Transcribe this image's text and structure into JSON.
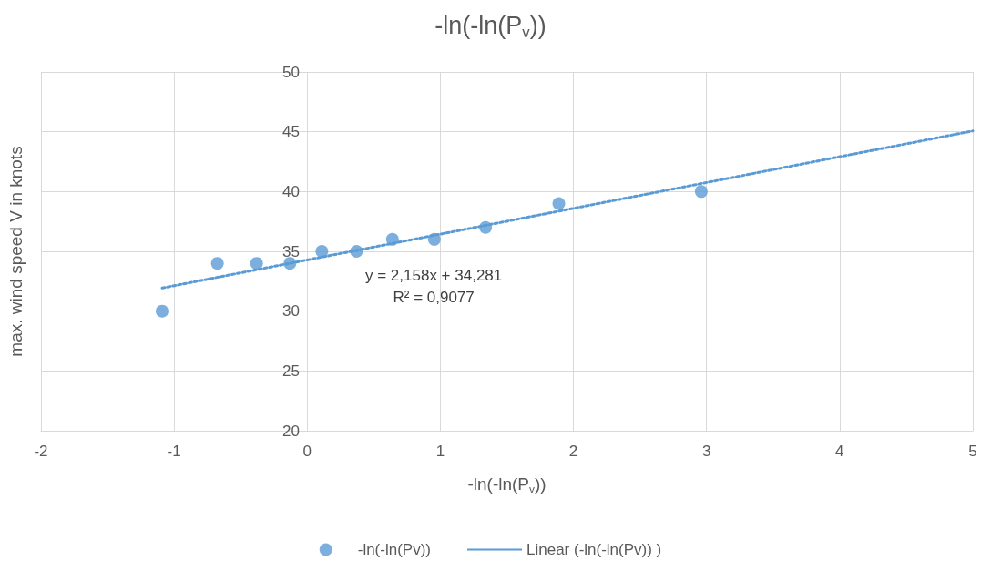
{
  "chart_data": {
    "type": "scatter",
    "title": "-ln(-ln(P$_{v}$))",
    "xlabel": "-ln(-ln(P$_{v}$))",
    "ylabel": "max. wind speed V in knots",
    "xlim": [
      -2,
      5
    ],
    "xticks": [
      -2,
      -1,
      0,
      1,
      2,
      3,
      4,
      5
    ],
    "ylim": [
      20,
      50
    ],
    "yticks": [
      20,
      25,
      30,
      35,
      40,
      45,
      50
    ],
    "grid": true,
    "legend": "bottom",
    "series": [
      {
        "name": "-ln(-ln(Pv))",
        "marker": "circle",
        "color": "#5b9bd5",
        "x": [
          -1.09,
          -0.675,
          -0.38,
          -0.13,
          0.11,
          0.37,
          0.64,
          0.955,
          1.34,
          1.89,
          2.96
        ],
        "values": [
          30,
          34,
          34,
          34,
          35,
          35,
          36,
          36,
          37,
          39,
          40
        ]
      },
      {
        "name": "Linear (-ln(-ln(Pv)) )",
        "type": "line",
        "marker": "none",
        "line_style": "dotted",
        "color": "#5b9bd5",
        "x": [
          -1.09,
          5
        ],
        "values": [
          31.93,
          45.07
        ]
      }
    ],
    "annotations": [
      "y = 2,158x + 34,281",
      "R² = 0,9077"
    ]
  }
}
